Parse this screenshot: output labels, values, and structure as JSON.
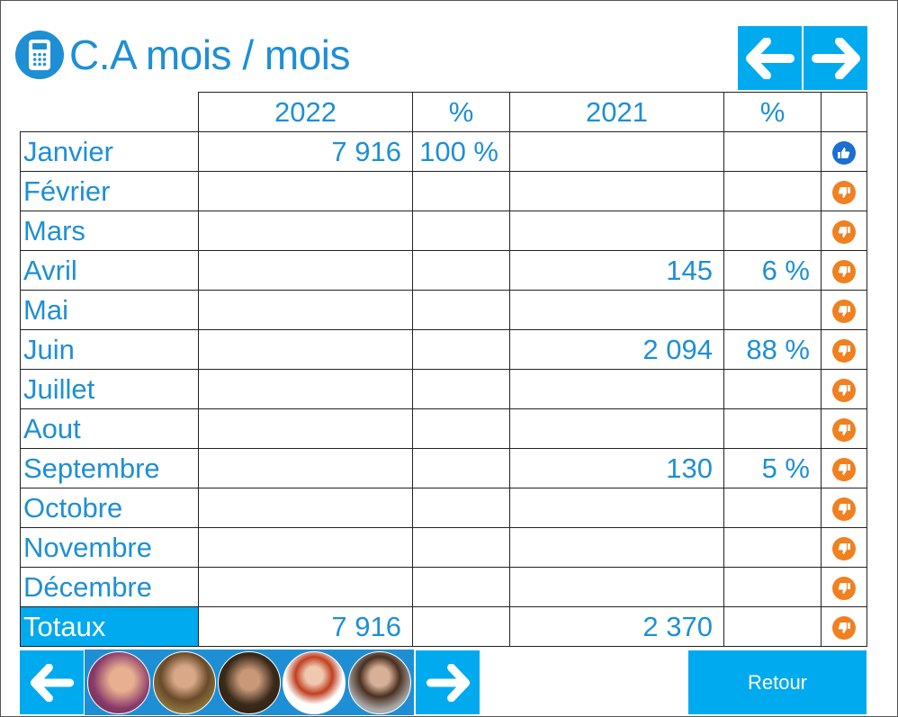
{
  "header": {
    "title": "C.A mois / mois",
    "icon": "calculator-icon"
  },
  "colors": {
    "accent": "#1e8fd5",
    "button": "#00aaee",
    "thumbs_up": "#1a6fd0",
    "thumbs_down": "#f08020"
  },
  "table": {
    "columns": [
      "",
      "2022",
      "%",
      "2021",
      "%",
      ""
    ],
    "rows": [
      {
        "month": "Janvier",
        "y2022": "7 916",
        "p2022": "100 %",
        "y2021": "",
        "p2021": "",
        "status": "up"
      },
      {
        "month": "Février",
        "y2022": "",
        "p2022": "",
        "y2021": "",
        "p2021": "",
        "status": "down"
      },
      {
        "month": "Mars",
        "y2022": "",
        "p2022": "",
        "y2021": "",
        "p2021": "",
        "status": "down"
      },
      {
        "month": "Avril",
        "y2022": "",
        "p2022": "",
        "y2021": "145",
        "p2021": "6 %",
        "status": "down"
      },
      {
        "month": "Mai",
        "y2022": "",
        "p2022": "",
        "y2021": "",
        "p2021": "",
        "status": "down"
      },
      {
        "month": "Juin",
        "y2022": "",
        "p2022": "",
        "y2021": "2 094",
        "p2021": "88 %",
        "status": "down"
      },
      {
        "month": "Juillet",
        "y2022": "",
        "p2022": "",
        "y2021": "",
        "p2021": "",
        "status": "down"
      },
      {
        "month": "Aout",
        "y2022": "",
        "p2022": "",
        "y2021": "",
        "p2021": "",
        "status": "down"
      },
      {
        "month": "Septembre",
        "y2022": "",
        "p2022": "",
        "y2021": "130",
        "p2021": "5 %",
        "status": "down"
      },
      {
        "month": "Octobre",
        "y2022": "",
        "p2022": "",
        "y2021": "",
        "p2021": "",
        "status": "down"
      },
      {
        "month": "Novembre",
        "y2022": "",
        "p2022": "",
        "y2021": "",
        "p2021": "",
        "status": "down"
      },
      {
        "month": "Décembre",
        "y2022": "",
        "p2022": "",
        "y2021": "",
        "p2021": "",
        "status": "down"
      }
    ],
    "totals": {
      "label": "Totaux",
      "y2022": "7 916",
      "p2022": "",
      "y2021": "2 370",
      "p2021": "",
      "status": "down"
    }
  },
  "footer": {
    "retour_label": "Retour",
    "avatars": 5
  }
}
